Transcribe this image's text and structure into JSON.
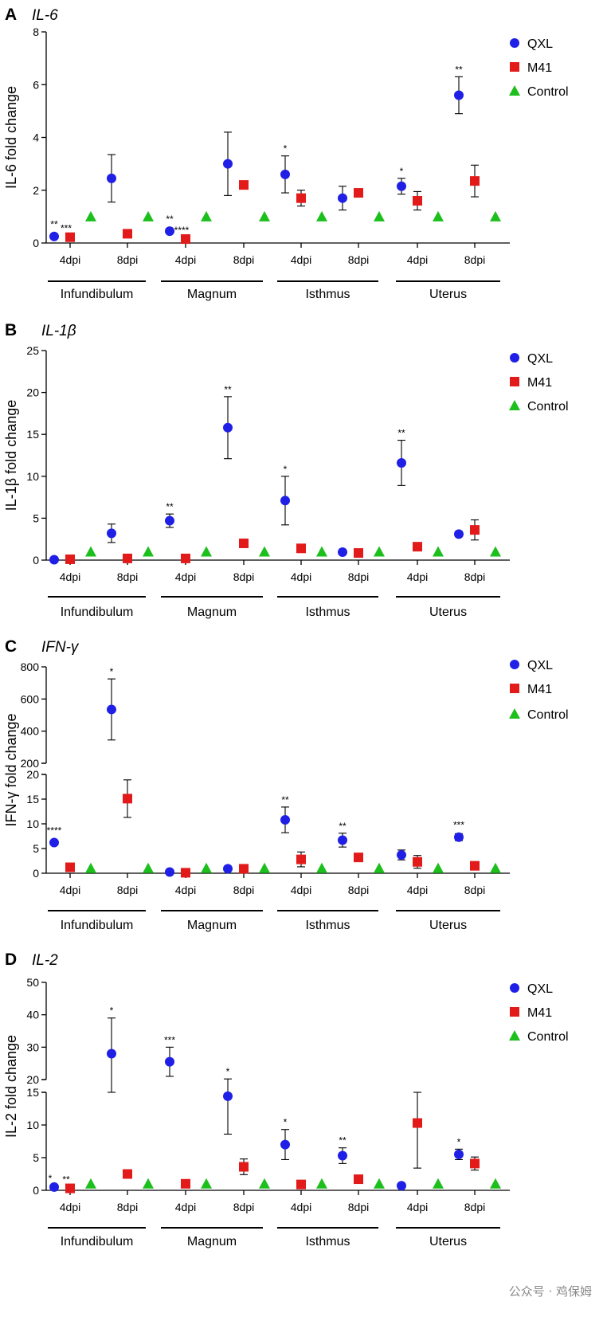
{
  "legend": [
    "QXL",
    "M41",
    "Control"
  ],
  "colors": {
    "QXL": "#1f1fe6",
    "M41": "#e31a1a",
    "Control": "#1dbf1d"
  },
  "watermark": "公众号 · 鸡保姆",
  "chart_data": [
    {
      "type": "scatter",
      "panel_letter": "A",
      "title": "IL-6",
      "ylabel": "IL-6 fold change",
      "ylim": [
        0,
        8
      ],
      "yticks": [
        "0",
        "2",
        "4",
        "6",
        "8"
      ],
      "ytick_values": [
        0,
        2,
        4,
        6,
        8
      ],
      "categories": [
        "4dpi",
        "8dpi",
        "4dpi",
        "8dpi",
        "4dpi",
        "8dpi",
        "4dpi",
        "8dpi"
      ],
      "groups": [
        "Infundibulum",
        "Magnum",
        "Isthmus",
        "Uterus"
      ],
      "series": [
        {
          "name": "QXL",
          "values": [
            0.25,
            2.45,
            0.45,
            3.0,
            2.6,
            1.7,
            2.15,
            5.6
          ],
          "errors": [
            0.05,
            0.9,
            0.08,
            1.2,
            0.7,
            0.45,
            0.3,
            0.7
          ],
          "sig": [
            "**",
            "",
            "**",
            "",
            "*",
            "",
            "*",
            "**"
          ]
        },
        {
          "name": "M41",
          "values": [
            0.22,
            0.35,
            0.15,
            2.2,
            1.7,
            1.9,
            1.6,
            2.35
          ],
          "errors": [
            0,
            0,
            0,
            0.1,
            0.3,
            0.12,
            0.35,
            0.6
          ],
          "sig": [
            "***",
            "",
            "****",
            "",
            "",
            "",
            "",
            ""
          ]
        },
        {
          "name": "Control",
          "values": [
            1,
            1,
            1,
            1,
            1,
            1,
            1,
            1
          ],
          "errors": [
            0,
            0,
            0,
            0,
            0,
            0,
            0,
            0
          ],
          "sig": [
            "",
            "",
            "",
            "",
            "",
            "",
            "",
            ""
          ]
        }
      ]
    },
    {
      "type": "scatter",
      "panel_letter": "B",
      "title": "IL-1β",
      "ylabel": "IL-1β fold change",
      "ylim": [
        0,
        25
      ],
      "yticks": [
        "0",
        "5",
        "10",
        "15",
        "20",
        "25"
      ],
      "ytick_values": [
        0,
        5,
        10,
        15,
        20,
        25
      ],
      "categories": [
        "4dpi",
        "8dpi",
        "4dpi",
        "8dpi",
        "4dpi",
        "8dpi",
        "4dpi",
        "8dpi"
      ],
      "groups": [
        "Infundibulum",
        "Magnum",
        "Isthmus",
        "Uterus"
      ],
      "series": [
        {
          "name": "QXL",
          "values": [
            0.05,
            3.2,
            4.7,
            15.8,
            7.1,
            0.95,
            11.6,
            3.1
          ],
          "errors": [
            0,
            1.1,
            0.8,
            3.7,
            2.9,
            0.1,
            2.7,
            0.3
          ],
          "sig": [
            "",
            "",
            "**",
            "**",
            "*",
            "",
            "**",
            ""
          ]
        },
        {
          "name": "M41",
          "values": [
            0.1,
            0.2,
            0.2,
            2.0,
            1.4,
            0.85,
            1.6,
            3.6
          ],
          "errors": [
            0,
            0,
            0,
            0,
            0,
            0,
            0,
            1.2
          ],
          "sig": [
            "",
            "",
            "",
            "",
            "",
            "",
            "",
            ""
          ]
        },
        {
          "name": "Control",
          "values": [
            1,
            1,
            1,
            1,
            1,
            1,
            1,
            1
          ],
          "errors": [
            0,
            0,
            0,
            0,
            0,
            0,
            0,
            0
          ],
          "sig": [
            "",
            "",
            "",
            "",
            "",
            "",
            "",
            ""
          ]
        }
      ]
    },
    {
      "type": "scatter",
      "panel_letter": "C",
      "title": "IFN-γ",
      "ylabel": "IFN-γ fold change",
      "y_axis_break": true,
      "ylim_lower": [
        0,
        20
      ],
      "ylim_upper": [
        200,
        800
      ],
      "yticks": [
        "0",
        "5",
        "10",
        "15",
        "20",
        "200",
        "400",
        "600",
        "800"
      ],
      "ytick_values": [
        0,
        5,
        10,
        15,
        20,
        200,
        400,
        600,
        800
      ],
      "categories": [
        "4dpi",
        "8dpi",
        "4dpi",
        "8dpi",
        "4dpi",
        "8dpi",
        "4dpi",
        "8dpi"
      ],
      "groups": [
        "Infundibulum",
        "Magnum",
        "Isthmus",
        "Uterus"
      ],
      "series": [
        {
          "name": "QXL",
          "values": [
            6.2,
            535,
            0.25,
            0.9,
            10.8,
            6.7,
            3.7,
            7.3
          ],
          "errors": [
            0.3,
            190,
            0,
            0.4,
            2.6,
            1.4,
            1.0,
            0.7
          ],
          "sig": [
            "****",
            "*",
            "",
            "",
            "**",
            "**",
            "",
            "***"
          ]
        },
        {
          "name": "M41",
          "values": [
            1.2,
            15.1,
            0.1,
            0.9,
            2.8,
            3.2,
            2.3,
            1.5
          ],
          "errors": [
            0,
            3.8,
            0,
            0,
            1.5,
            0,
            1.3,
            0
          ],
          "sig": [
            "",
            "",
            "",
            "",
            "",
            "",
            "",
            ""
          ]
        },
        {
          "name": "Control",
          "values": [
            1,
            1,
            1,
            1,
            1,
            1,
            1,
            1
          ],
          "errors": [
            0,
            0,
            0,
            0,
            0,
            0,
            0,
            0
          ],
          "sig": [
            "",
            "",
            "",
            "",
            "",
            "",
            "",
            ""
          ]
        }
      ]
    },
    {
      "type": "scatter",
      "panel_letter": "D",
      "title": "IL-2",
      "ylabel": "IL-2 fold change",
      "y_axis_break": true,
      "ylim_lower": [
        0,
        15
      ],
      "ylim_upper": [
        20,
        50
      ],
      "yticks": [
        "0",
        "5",
        "10",
        "15",
        "20",
        "30",
        "40",
        "50"
      ],
      "ytick_values": [
        0,
        5,
        10,
        15,
        20,
        30,
        40,
        50
      ],
      "categories": [
        "4dpi",
        "8dpi",
        "4dpi",
        "8dpi",
        "4dpi",
        "8dpi",
        "4dpi",
        "8dpi"
      ],
      "groups": [
        "Infundibulum",
        "Magnum",
        "Isthmus",
        "Uterus"
      ],
      "series": [
        {
          "name": "QXL",
          "values": [
            0.5,
            28.0,
            25.5,
            14.4,
            7.0,
            5.3,
            0.7,
            5.5
          ],
          "errors": [
            0,
            11,
            4.5,
            5.8,
            2.3,
            1.2,
            0,
            0.8
          ],
          "sig": [
            "*",
            "*",
            "***",
            "*",
            "*",
            "**",
            "",
            "*"
          ]
        },
        {
          "name": "M41",
          "values": [
            0.3,
            2.5,
            1.0,
            3.6,
            0.9,
            1.7,
            10.3,
            4.1
          ],
          "errors": [
            0,
            0,
            0,
            1.2,
            0,
            0,
            6.9,
            1.0
          ],
          "sig": [
            "**",
            "",
            "",
            "",
            "",
            "",
            "",
            ""
          ]
        },
        {
          "name": "Control",
          "values": [
            1,
            1,
            1,
            1,
            1,
            1,
            1,
            1
          ],
          "errors": [
            0,
            0,
            0,
            0,
            0,
            0,
            0,
            0
          ],
          "sig": [
            "",
            "",
            "",
            "",
            "",
            "",
            "",
            ""
          ]
        }
      ]
    }
  ]
}
